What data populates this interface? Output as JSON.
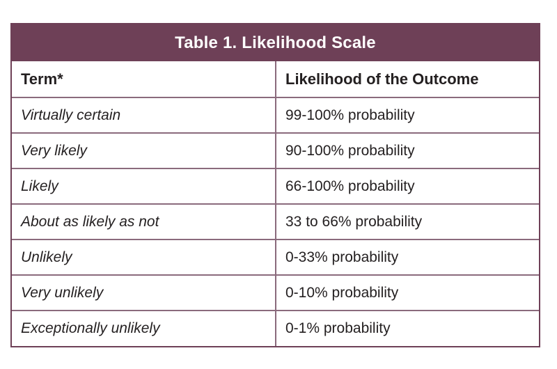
{
  "table": {
    "caption": "Table 1. Likelihood Scale",
    "headers": {
      "term": "Term*",
      "likelihood": "Likelihood of the Outcome"
    },
    "rows": [
      {
        "term": "Virtually certain",
        "likelihood": "99-100% probability"
      },
      {
        "term": "Very likely",
        "likelihood": "90-100% probability"
      },
      {
        "term": "Likely",
        "likelihood": "66-100% probability"
      },
      {
        "term": "About as likely as not",
        "likelihood": "33 to 66% probability"
      },
      {
        "term": "Unlikely",
        "likelihood": "0-33% probability"
      },
      {
        "term": "Very unlikely",
        "likelihood": "0-10% probability"
      },
      {
        "term": "Exceptionally unlikely",
        "likelihood": "0-1% probability"
      }
    ]
  },
  "colors": {
    "header_bg": "#6e4057",
    "border": "#8a6a7c",
    "text": "#231f20"
  }
}
